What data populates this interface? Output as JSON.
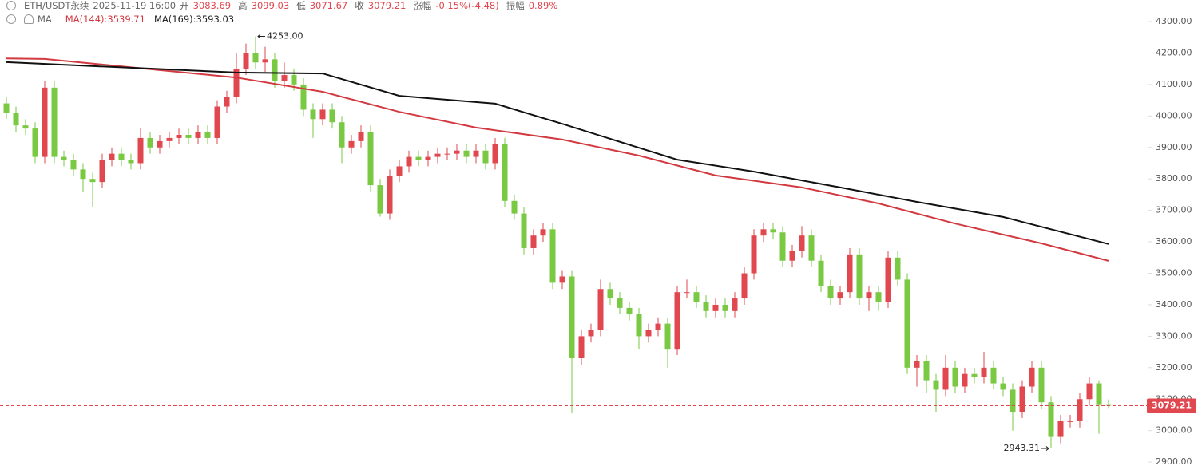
{
  "header": {
    "symbol": "ETH/USDT永续",
    "time": "2025-11-19 16:00",
    "open_label": "开",
    "open": 3083.69,
    "high_label": "高",
    "high": 3099.03,
    "low_label": "低",
    "low": 3071.67,
    "close_label": "收",
    "close": 3079.21,
    "change_label": "涨幅",
    "change": "-0.15%(-4.48)",
    "amplitude_label": "振幅",
    "amplitude": "0.89%",
    "indicator": "MA",
    "ma_legend": [
      "MA(144):3539.71",
      "MA(169):3593.03"
    ]
  },
  "chart_data": {
    "type": "candlestick",
    "up_color": "#e0474f",
    "down_color": "#7ac943",
    "open": [
      4040,
      4010,
      3970,
      3960,
      3870,
      4090,
      3870,
      3860,
      3830,
      3800,
      3790,
      3860,
      3880,
      3860,
      3850,
      3930,
      3900,
      3920,
      3930,
      3940,
      3930,
      3950,
      3930,
      4030,
      4060,
      4150,
      4200,
      4170,
      4180,
      4110,
      4130,
      4100,
      4020,
      3990,
      4020,
      3980,
      3900,
      3920,
      3950,
      3780,
      3690,
      3810,
      3840,
      3870,
      3860,
      3870,
      3880,
      3880,
      3890,
      3870,
      3890,
      3850,
      3910,
      3730,
      3690,
      3580,
      3620,
      3640,
      3470,
      3490,
      3230,
      3300,
      3320,
      3450,
      3420,
      3390,
      3370,
      3300,
      3320,
      3340,
      3260,
      3440,
      3440,
      3410,
      3380,
      3400,
      3380,
      3420,
      3500,
      3620,
      3640,
      3630,
      3540,
      3570,
      3620,
      3540,
      3460,
      3420,
      3440,
      3560,
      3420,
      3440,
      3410,
      3550,
      3480,
      3200,
      3220,
      3160,
      3130,
      3200,
      3140,
      3180,
      3170,
      3200,
      3150,
      3130,
      3060,
      3140,
      3200,
      3090,
      2980,
      3030,
      3030,
      3100,
      3150,
      3083.69
    ],
    "high": [
      4060,
      4030,
      3990,
      3980,
      4110,
      4110,
      3890,
      3880,
      3850,
      3820,
      3880,
      3900,
      3900,
      3880,
      3960,
      3950,
      3940,
      3950,
      3960,
      3960,
      3970,
      3970,
      4050,
      4080,
      4200,
      4230,
      4253,
      4220,
      4200,
      4170,
      4150,
      4120,
      4040,
      4040,
      4040,
      4000,
      3940,
      3970,
      3970,
      3800,
      3830,
      3860,
      3890,
      3890,
      3890,
      3900,
      3900,
      3910,
      3910,
      3910,
      3910,
      3930,
      3930,
      3750,
      3710,
      3640,
      3660,
      3660,
      3510,
      3510,
      3320,
      3340,
      3480,
      3470,
      3440,
      3410,
      3390,
      3340,
      3360,
      3360,
      3460,
      3480,
      3460,
      3430,
      3420,
      3420,
      3440,
      3520,
      3640,
      3660,
      3660,
      3650,
      3590,
      3650,
      3640,
      3560,
      3480,
      3460,
      3580,
      3580,
      3460,
      3460,
      3570,
      3570,
      3500,
      3240,
      3240,
      3180,
      3240,
      3220,
      3200,
      3200,
      3250,
      3220,
      3170,
      3150,
      3160,
      3220,
      3220,
      3110,
      3050,
      3050,
      3120,
      3170,
      3160,
      3099.03
    ],
    "low": [
      3990,
      3950,
      3940,
      3850,
      3850,
      3850,
      3840,
      3810,
      3760,
      3710,
      3770,
      3840,
      3840,
      3830,
      3830,
      3880,
      3880,
      3900,
      3910,
      3910,
      3910,
      3910,
      3910,
      4010,
      4040,
      4130,
      4150,
      4140,
      4090,
      4090,
      4080,
      4000,
      3930,
      3970,
      3960,
      3850,
      3880,
      3900,
      3760,
      3680,
      3670,
      3790,
      3820,
      3840,
      3840,
      3850,
      3860,
      3860,
      3850,
      3850,
      3830,
      3830,
      3710,
      3670,
      3560,
      3560,
      3600,
      3450,
      3450,
      3055,
      3210,
      3280,
      3300,
      3400,
      3370,
      3350,
      3260,
      3280,
      3300,
      3200,
      3240,
      3420,
      3390,
      3360,
      3360,
      3360,
      3360,
      3400,
      3480,
      3600,
      3610,
      3520,
      3520,
      3550,
      3520,
      3440,
      3400,
      3400,
      3420,
      3400,
      3380,
      3380,
      3390,
      3460,
      3180,
      3140,
      3120,
      3060,
      3110,
      3120,
      3120,
      3150,
      3150,
      3130,
      3110,
      3000,
      3040,
      3120,
      3070,
      2943.31,
      2960,
      3010,
      3010,
      3080,
      2990,
      3071.67
    ],
    "close": [
      4010,
      3970,
      3960,
      3870,
      4090,
      3870,
      3860,
      3830,
      3800,
      3790,
      3860,
      3880,
      3860,
      3850,
      3930,
      3900,
      3920,
      3930,
      3940,
      3930,
      3950,
      3930,
      4030,
      4060,
      4150,
      4200,
      4170,
      4180,
      4110,
      4130,
      4100,
      4020,
      3990,
      4020,
      3980,
      3900,
      3920,
      3950,
      3780,
      3690,
      3810,
      3840,
      3870,
      3860,
      3870,
      3880,
      3880,
      3890,
      3870,
      3890,
      3850,
      3910,
      3730,
      3690,
      3580,
      3620,
      3640,
      3470,
      3490,
      3230,
      3300,
      3320,
      3450,
      3420,
      3390,
      3370,
      3300,
      3320,
      3340,
      3260,
      3440,
      3440,
      3410,
      3380,
      3400,
      3380,
      3420,
      3500,
      3620,
      3640,
      3630,
      3540,
      3570,
      3620,
      3540,
      3460,
      3420,
      3440,
      3560,
      3420,
      3440,
      3410,
      3550,
      3480,
      3200,
      3220,
      3160,
      3130,
      3200,
      3140,
      3180,
      3170,
      3200,
      3150,
      3130,
      3060,
      3140,
      3200,
      3090,
      2980,
      3030,
      3030,
      3100,
      3150,
      3083.69,
      3079.21
    ],
    "ylim": [
      2875,
      4368.5
    ],
    "yticks": [
      {
        "value": 2900,
        "label": "2900.00"
      },
      {
        "value": 3000,
        "label": "3000.00"
      },
      {
        "value": 3100,
        "label": "3100.00"
      },
      {
        "value": 3200,
        "label": "3200.00"
      },
      {
        "value": 3300,
        "label": "3300.00"
      },
      {
        "value": 3400,
        "label": "3400.00"
      },
      {
        "value": 3500,
        "label": "3500.00"
      },
      {
        "value": 3600,
        "label": "3600.00"
      },
      {
        "value": 3700,
        "label": "3700.00"
      },
      {
        "value": 3800,
        "label": "3800.00"
      },
      {
        "value": 3900,
        "label": "3900.00"
      },
      {
        "value": 4000,
        "label": "4000.00"
      },
      {
        "value": 4100,
        "label": "4100.00"
      },
      {
        "value": 4200,
        "label": "4200.00"
      },
      {
        "value": 4300,
        "label": "4300.00"
      }
    ],
    "ma_lines": [
      {
        "color": "#d23a41",
        "x": [
          0,
          4,
          24,
          33,
          41,
          49,
          58,
          66,
          74,
          83,
          91,
          99,
          108,
          115
        ],
        "values": [
          4183,
          4181,
          4122,
          4077,
          4013,
          3963,
          3925,
          3874,
          3811,
          3773,
          3722,
          3658,
          3595,
          3539.71
        ]
      },
      {
        "color": "#111111",
        "x": [
          0,
          24,
          33,
          41,
          51,
          58,
          66,
          70,
          78,
          87,
          95,
          104,
          115
        ],
        "values": [
          4171,
          4138,
          4135,
          4064,
          4039,
          3975,
          3899,
          3861,
          3823,
          3773,
          3727,
          3679,
          3593.03
        ]
      }
    ],
    "annotations": [
      {
        "value": 4253,
        "label": "4253.00"
      },
      {
        "value": 2943.31,
        "label": "2943.31"
      }
    ],
    "last_price": 3079.21
  }
}
